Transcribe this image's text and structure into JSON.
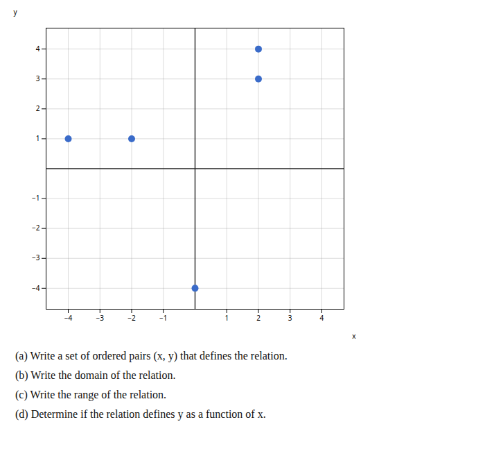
{
  "chart_data": {
    "type": "scatter",
    "x": [
      -4,
      -2,
      2,
      2,
      0
    ],
    "values": [
      1,
      1,
      4,
      3,
      -4
    ],
    "color": "#3a6bc9",
    "xlabel": "x",
    "ylabel": "y",
    "xlim": [
      -4.7,
      4.7
    ],
    "ylim": [
      -4.7,
      4.7
    ],
    "xticks": [
      -4,
      -3,
      -2,
      -1,
      1,
      2,
      3,
      4
    ],
    "yticks": [
      -4,
      -3,
      -2,
      -1,
      1,
      2,
      3,
      4
    ],
    "grid": true,
    "annotations": [
      "(a) Write a set of ordered pairs (x, y) that defines the relation.",
      "(b) Write the domain of the relation.",
      "(c) Write the range of the relation.",
      "(d) Determine if the relation defines y as a function of x."
    ]
  }
}
